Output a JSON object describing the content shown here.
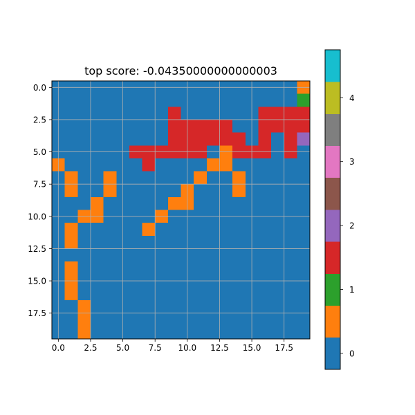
{
  "chart_data": {
    "type": "heatmap",
    "title": "top score: -0.04350000000000003",
    "xlabel": "",
    "ylabel": "",
    "rows": 20,
    "cols": 20,
    "xlim": [
      -0.5,
      19.5
    ],
    "ylim": [
      19.5,
      -0.5
    ],
    "x_ticks": [
      0.0,
      2.5,
      5.0,
      7.5,
      10.0,
      12.5,
      15.0,
      17.5
    ],
    "x_tick_labels": [
      "0.0",
      "2.5",
      "5.0",
      "7.5",
      "10.0",
      "12.5",
      "15.0",
      "17.5"
    ],
    "y_ticks": [
      0.0,
      2.5,
      5.0,
      7.5,
      10.0,
      12.5,
      15.0,
      17.5
    ],
    "y_tick_labels": [
      "0.0",
      "2.5",
      "5.0",
      "7.5",
      "10.0",
      "12.5",
      "15.0",
      "17.5"
    ],
    "grid": true,
    "colormap": "tab10",
    "palette": [
      "#1f77b4",
      "#ff7f0e",
      "#2ca02c",
      "#d62728",
      "#9467bd",
      "#8c564b",
      "#e377c2",
      "#7f7f7f",
      "#bcbd22",
      "#17becf"
    ],
    "vmin": -0.25,
    "vmax": 4.75,
    "colorbar_ticks": [
      0,
      1,
      2,
      3,
      4
    ],
    "colorbar_tick_labels": [
      "0",
      "1",
      "2",
      "3",
      "4"
    ],
    "grid_values": [
      [
        0,
        0,
        0,
        0,
        0,
        0,
        0,
        0,
        0,
        0,
        0,
        0,
        0,
        0,
        0,
        0,
        0,
        0,
        0,
        1
      ],
      [
        0,
        0,
        0,
        0,
        0,
        0,
        0,
        0,
        0,
        0,
        0,
        0,
        0,
        0,
        0,
        0,
        0,
        0,
        0,
        2
      ],
      [
        0,
        0,
        0,
        0,
        0,
        0,
        0,
        0,
        0,
        3,
        0,
        0,
        0,
        0,
        0,
        0,
        3,
        3,
        3,
        3
      ],
      [
        0,
        0,
        0,
        0,
        0,
        0,
        0,
        0,
        0,
        3,
        3,
        3,
        3,
        3,
        0,
        0,
        3,
        3,
        3,
        3
      ],
      [
        0,
        0,
        0,
        0,
        0,
        0,
        0,
        0,
        0,
        3,
        3,
        3,
        3,
        3,
        3,
        0,
        3,
        0,
        3,
        4
      ],
      [
        0,
        0,
        0,
        0,
        0,
        0,
        3,
        3,
        3,
        3,
        3,
        3,
        0,
        1,
        3,
        3,
        3,
        0,
        3,
        0
      ],
      [
        1,
        0,
        0,
        0,
        0,
        0,
        0,
        3,
        0,
        0,
        0,
        0,
        1,
        1,
        0,
        0,
        0,
        0,
        0,
        0
      ],
      [
        0,
        1,
        0,
        0,
        1,
        0,
        0,
        0,
        0,
        0,
        0,
        1,
        0,
        0,
        1,
        0,
        0,
        0,
        0,
        0
      ],
      [
        0,
        1,
        0,
        0,
        1,
        0,
        0,
        0,
        0,
        0,
        1,
        0,
        0,
        0,
        1,
        0,
        0,
        0,
        0,
        0
      ],
      [
        0,
        0,
        0,
        1,
        0,
        0,
        0,
        0,
        0,
        1,
        1,
        0,
        0,
        0,
        0,
        0,
        0,
        0,
        0,
        0
      ],
      [
        0,
        0,
        1,
        1,
        0,
        0,
        0,
        0,
        1,
        0,
        0,
        0,
        0,
        0,
        0,
        0,
        0,
        0,
        0,
        0
      ],
      [
        0,
        1,
        0,
        0,
        0,
        0,
        0,
        1,
        0,
        0,
        0,
        0,
        0,
        0,
        0,
        0,
        0,
        0,
        0,
        0
      ],
      [
        0,
        1,
        0,
        0,
        0,
        0,
        0,
        0,
        0,
        0,
        0,
        0,
        0,
        0,
        0,
        0,
        0,
        0,
        0,
        0
      ],
      [
        0,
        0,
        0,
        0,
        0,
        0,
        0,
        0,
        0,
        0,
        0,
        0,
        0,
        0,
        0,
        0,
        0,
        0,
        0,
        0
      ],
      [
        0,
        1,
        0,
        0,
        0,
        0,
        0,
        0,
        0,
        0,
        0,
        0,
        0,
        0,
        0,
        0,
        0,
        0,
        0,
        0
      ],
      [
        0,
        1,
        0,
        0,
        0,
        0,
        0,
        0,
        0,
        0,
        0,
        0,
        0,
        0,
        0,
        0,
        0,
        0,
        0,
        0
      ],
      [
        0,
        1,
        0,
        0,
        0,
        0,
        0,
        0,
        0,
        0,
        0,
        0,
        0,
        0,
        0,
        0,
        0,
        0,
        0,
        0
      ],
      [
        0,
        0,
        1,
        0,
        0,
        0,
        0,
        0,
        0,
        0,
        0,
        0,
        0,
        0,
        0,
        0,
        0,
        0,
        0,
        0
      ],
      [
        0,
        0,
        1,
        0,
        0,
        0,
        0,
        0,
        0,
        0,
        0,
        0,
        0,
        0,
        0,
        0,
        0,
        0,
        0,
        0
      ],
      [
        0,
        0,
        1,
        0,
        0,
        0,
        0,
        0,
        0,
        0,
        0,
        0,
        0,
        0,
        0,
        0,
        0,
        0,
        0,
        0
      ]
    ]
  }
}
